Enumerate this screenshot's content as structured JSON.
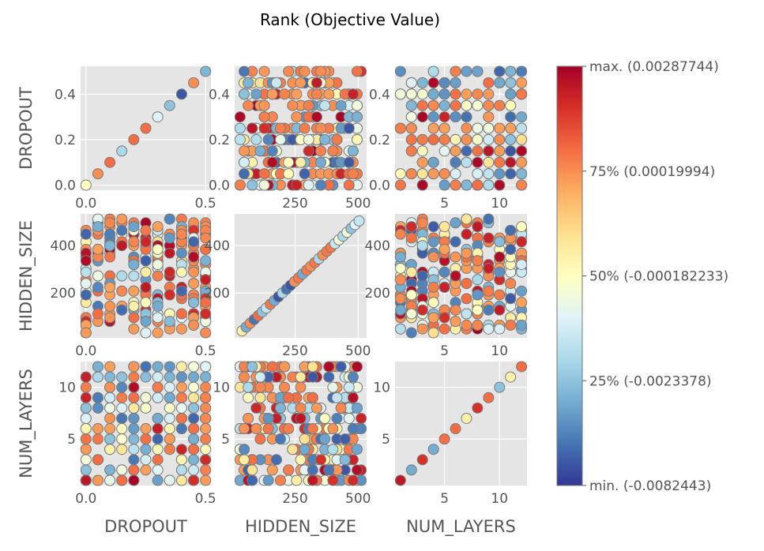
{
  "chart_data": {
    "type": "scatter",
    "title": "Rank (Objective Value)",
    "variables": [
      {
        "name": "DROPOUT",
        "min": 0.0,
        "max": 0.5,
        "ticks": [
          0.0,
          0.2,
          0.4
        ],
        "tick_labels": [
          "0.0",
          "0.2",
          "0.4"
        ],
        "x_ticks": [
          0.0,
          0.5
        ],
        "x_tick_labels": [
          "0.0",
          "0.5"
        ],
        "levels": [
          0.0,
          0.05,
          0.1,
          0.15,
          0.2,
          0.25,
          0.3,
          0.35,
          0.4,
          0.45,
          0.5
        ]
      },
      {
        "name": "HIDDEN_SIZE",
        "min": 32,
        "max": 512,
        "ticks": [
          200,
          400
        ],
        "tick_labels": [
          "200",
          "400"
        ],
        "x_ticks": [
          250,
          500
        ],
        "x_tick_labels": [
          "250",
          "500"
        ]
      },
      {
        "name": "NUM_LAYERS",
        "min": 1,
        "max": 12,
        "ticks": [
          5,
          10
        ],
        "tick_labels": [
          "5",
          "10"
        ],
        "x_ticks": [
          5,
          10
        ],
        "x_tick_labels": [
          "5",
          "10"
        ],
        "levels": [
          1,
          2,
          3,
          4,
          5,
          6,
          7,
          8,
          9,
          10,
          11,
          12
        ]
      }
    ],
    "diagonal_series": {
      "DROPOUT": {
        "values": [
          0.0,
          0.05,
          0.1,
          0.15,
          0.2,
          0.25,
          0.3,
          0.35,
          0.4,
          0.45,
          0.5
        ],
        "rank": [
          0.5,
          0.75,
          0.8,
          0.3,
          0.8,
          0.8,
          0.4,
          0.25,
          0.05,
          0.75,
          0.22
        ]
      },
      "HIDDEN_SIZE": {
        "values": [
          40,
          56,
          72,
          88,
          104,
          120,
          136,
          152,
          168,
          184,
          200,
          216,
          232,
          248,
          264,
          280,
          296,
          312,
          328,
          344,
          360,
          376,
          392,
          408,
          424,
          440,
          456,
          472,
          488,
          504
        ],
        "rank": [
          0.55,
          0.2,
          0.75,
          0.1,
          0.8,
          0.25,
          0.35,
          0.78,
          0.2,
          0.05,
          0.3,
          0.1,
          0.05,
          0.75,
          0.78,
          0.2,
          0.78,
          0.75,
          0.78,
          0.3,
          0.75,
          0.78,
          0.78,
          0.35,
          0.45,
          0.3,
          0.45,
          0.25,
          0.4,
          0.35
        ]
      },
      "NUM_LAYERS": {
        "values": [
          1,
          2,
          3,
          4,
          5,
          6,
          7,
          8,
          9,
          10,
          11,
          12
        ],
        "rank": [
          0.95,
          0.2,
          0.9,
          0.2,
          0.8,
          0.8,
          0.55,
          0.9,
          0.8,
          0.25,
          0.55,
          0.8
        ]
      }
    },
    "colorbar": {
      "colors": [
        "#313695",
        "#4575b4",
        "#74add1",
        "#abd9e9",
        "#e0f3f8",
        "#ffffbf",
        "#fee090",
        "#fdae61",
        "#f46d43",
        "#d73027",
        "#a50026"
      ],
      "labels": [
        {
          "pos": 1.0,
          "text": "max. (0.00287744)"
        },
        {
          "pos": 0.75,
          "text": "75% (0.00019994)"
        },
        {
          "pos": 0.5,
          "text": "50% (-0.000182233)"
        },
        {
          "pos": 0.25,
          "text": "25% (-0.0023378)"
        },
        {
          "pos": 0.0,
          "text": "min. (-0.0082443)"
        }
      ]
    },
    "grid": true,
    "point_color_rank_distribution": {
      "blue_low": 0.25,
      "light": 0.25,
      "orange": 0.4,
      "dark_red": 0.1
    }
  }
}
